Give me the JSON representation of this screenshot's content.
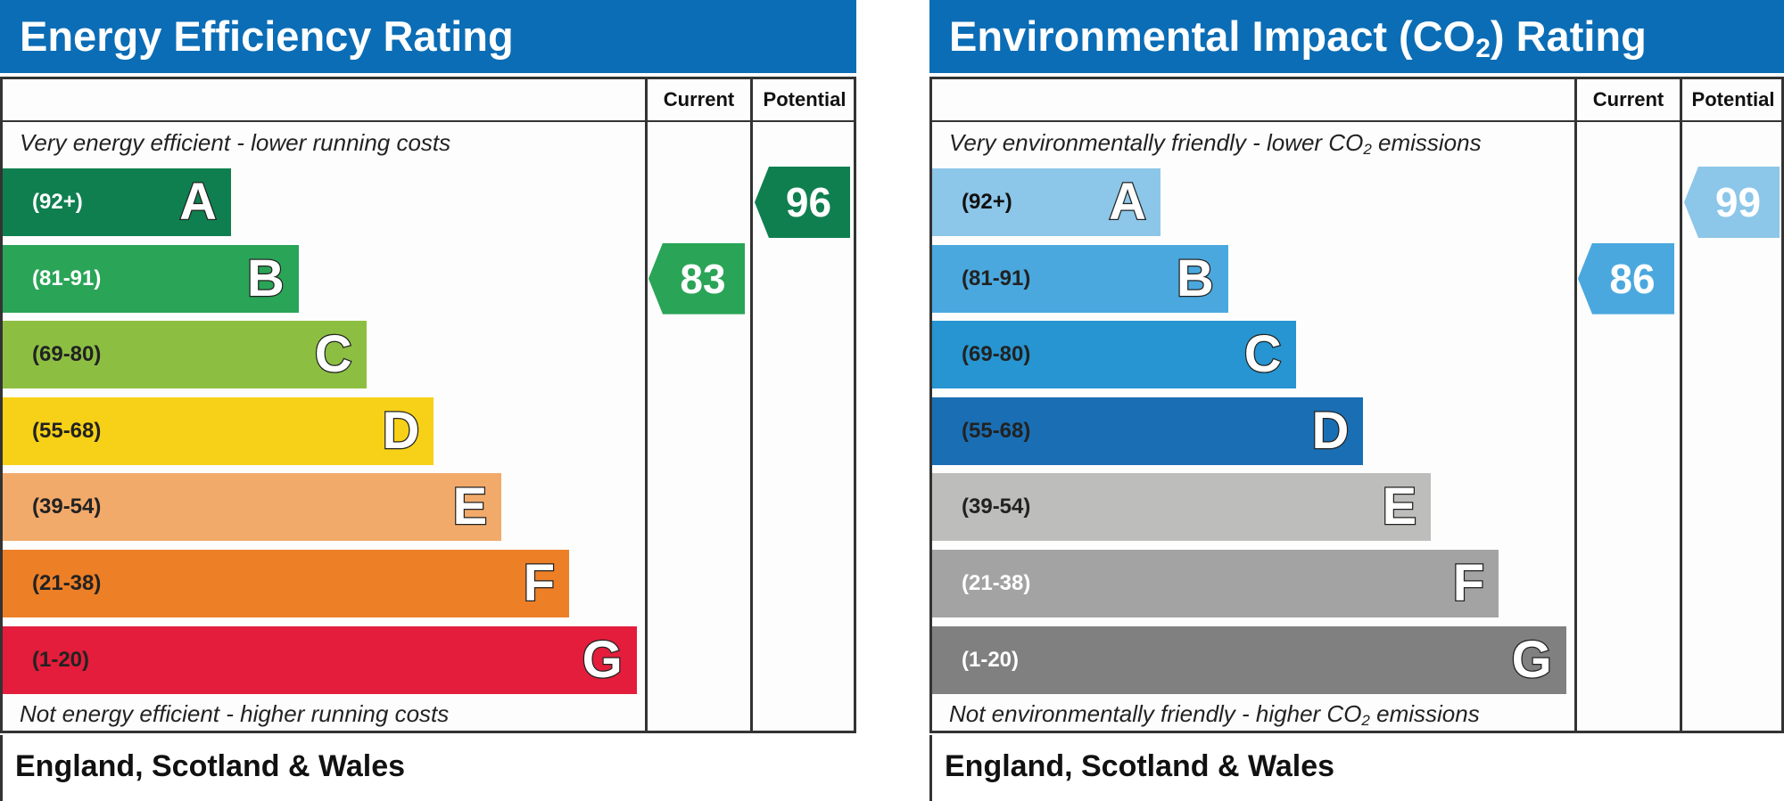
{
  "chart_data": [
    {
      "type": "bar",
      "title": "Energy Efficiency Rating",
      "columns": [
        "Current",
        "Potential"
      ],
      "top_caption": "Very energy efficient - lower running costs",
      "bottom_caption": "Not energy efficient - higher running costs",
      "footer": "England, Scotland & Wales",
      "bands": [
        {
          "letter": "A",
          "range": "(92+)",
          "color": "#0f7f4f",
          "text_color": "#ffffff"
        },
        {
          "letter": "B",
          "range": "(81-91)",
          "color": "#2aa457",
          "text_color": "#ffffff"
        },
        {
          "letter": "C",
          "range": "(69-80)",
          "color": "#8cbf41",
          "text_color": "#222222"
        },
        {
          "letter": "D",
          "range": "(55-68)",
          "color": "#f7d117",
          "text_color": "#222222"
        },
        {
          "letter": "E",
          "range": "(39-54)",
          "color": "#f2aa6b",
          "text_color": "#222222"
        },
        {
          "letter": "F",
          "range": "(21-38)",
          "color": "#ed7f27",
          "text_color": "#222222"
        },
        {
          "letter": "G",
          "range": "(1-20)",
          "color": "#e31d3b",
          "text_color": "#222222"
        }
      ],
      "current": {
        "value": 83,
        "band": "B",
        "color": "#2aa457"
      },
      "potential": {
        "value": 96,
        "band": "A",
        "color": "#0f7f4f"
      }
    },
    {
      "type": "bar",
      "title_prefix": "Environmental Impact (CO",
      "title_sub": "2",
      "title_suffix": ") Rating",
      "columns": [
        "Current",
        "Potential"
      ],
      "top_caption_prefix": "Very environmentally friendly - lower CO",
      "top_caption_sub": "2",
      "top_caption_suffix": " emissions",
      "bottom_caption_prefix": "Not environmentally friendly - higher CO",
      "bottom_caption_sub": "2",
      "bottom_caption_suffix": " emissions",
      "footer": "England, Scotland & Wales",
      "bands": [
        {
          "letter": "A",
          "range": "(92+)",
          "color": "#8cc6e8",
          "text_color": "#111111"
        },
        {
          "letter": "B",
          "range": "(81-91)",
          "color": "#4aa8de",
          "text_color": "#222222"
        },
        {
          "letter": "C",
          "range": "(69-80)",
          "color": "#2695d1",
          "text_color": "#222222"
        },
        {
          "letter": "D",
          "range": "(55-68)",
          "color": "#1a6fb4",
          "text_color": "#222222"
        },
        {
          "letter": "E",
          "range": "(39-54)",
          "color": "#bdbdbb",
          "text_color": "#222222"
        },
        {
          "letter": "F",
          "range": "(21-38)",
          "color": "#a3a3a3",
          "text_color": "#ffffff"
        },
        {
          "letter": "G",
          "range": "(1-20)",
          "color": "#808080",
          "text_color": "#ffffff"
        }
      ],
      "current": {
        "value": 86,
        "band": "B",
        "color": "#4aa8de"
      },
      "potential": {
        "value": 99,
        "band": "A",
        "color": "#8cc6e8"
      }
    }
  ]
}
